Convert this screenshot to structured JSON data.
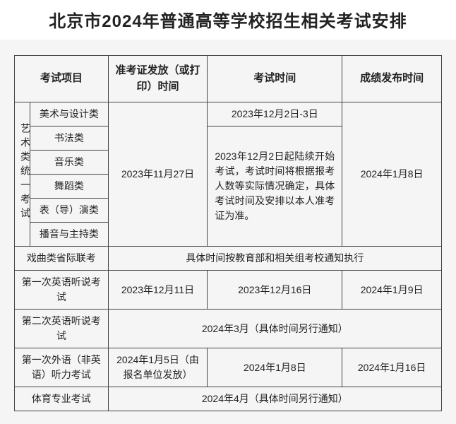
{
  "title": "北京市2024年普通高等学校招生相关考试安排",
  "headers": {
    "project": "考试项目",
    "ticket": "准考证发放（或打印）时间",
    "examtime": "考试时间",
    "result": "成绩发布时间"
  },
  "sideGroup": "艺术类统一考试",
  "artRows": {
    "r1": "美术与设计类",
    "r2": "书法类",
    "r3": "音乐类",
    "r4": "舞蹈类",
    "r5": "表（导）演类",
    "r6": "播音与主持类"
  },
  "artShared": {
    "ticket": "2023年11月27日",
    "exam1": "2023年12月2日-3日",
    "exam2": "2023年12月2日起陆续开始考试，考试时间将根据报考人数等实际情况确定，具体考试时间及安排以本人准考证为准。",
    "result": "2024年1月8日"
  },
  "rowDrama": {
    "project": "戏曲类省际联考",
    "merged": "具体时间按教育部和相关组考校通知执行"
  },
  "rowEng1": {
    "project": "第一次英语听说考试",
    "ticket": "2023年12月11日",
    "exam": "2023年12月16日",
    "result": "2024年1月9日"
  },
  "rowEng2": {
    "project": "第二次英语听说考试",
    "merged": "2024年3月（具体时间另行通知）"
  },
  "rowForeign": {
    "project": "第一次外语（非英语）听力考试",
    "ticket": "2024年1月5日（由报名单位发放）",
    "exam": "2024年1月8日",
    "result": "2024年1月16日"
  },
  "rowPE": {
    "project": "体育专业考试",
    "merged": "2024年4月（具体时间另行通知）"
  }
}
